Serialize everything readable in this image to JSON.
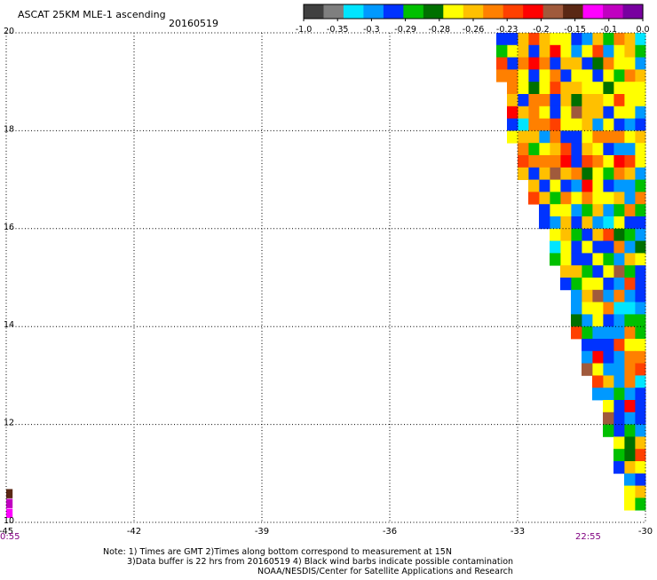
{
  "header": {
    "title": "ASCAT 25KM MLE-1 ascending",
    "date": "20160519"
  },
  "colorbar": {
    "tick_labels": [
      "-1.0",
      "-0.35",
      "-0.3",
      "-0.29",
      "-0.28",
      "-0.26",
      "-0.23",
      "-0.2",
      "-0.15",
      "-0.1",
      "0.0"
    ],
    "colors": [
      "#404040",
      "#7f7f7f",
      "#00e5ff",
      "#0099ff",
      "#0033ff",
      "#00c000",
      "#007000",
      "#ffff00",
      "#ffc000",
      "#ff8000",
      "#ff4000",
      "#ff0000",
      "#a05a3c",
      "#5a2814",
      "#ff00ff",
      "#c000c0",
      "#7800a0"
    ]
  },
  "footer": {
    "note_line1": "Note: 1) Times are GMT 2)Times along bottom correspond to measurement at 15N",
    "note_line2": "3)Data buffer is 22 hrs from 20160519 4) Black wind barbs indicate possible contamination",
    "credit": "NOAA/NESDIS/Center for Satellite Applications and Research"
  },
  "time_labels": {
    "left": "0:55",
    "right": "22:55",
    "color": "#800080"
  },
  "chart_data": {
    "type": "heatmap",
    "title": "ASCAT 25KM MLE-1 ascending",
    "xlabel": "",
    "ylabel": "",
    "xlim": [
      -45,
      -30
    ],
    "ylim": [
      10,
      20
    ],
    "x_ticks": [
      -45,
      -42,
      -39,
      -36,
      -33,
      -30
    ],
    "x_tick_labels": [
      "-45",
      "-42",
      "-39",
      "-36",
      "-33",
      "-30"
    ],
    "y_ticks": [
      10,
      12,
      14,
      16,
      18,
      20
    ],
    "y_tick_labels": [
      "10",
      "12",
      "14",
      "16",
      "18",
      "20"
    ],
    "grid": true,
    "grid_style": "dotted",
    "cell_size_deg": 0.25,
    "swath": [
      {
        "lat": 19.5,
        "west_lon": -33.6
      },
      {
        "lat": 18.5,
        "west_lon": -33.4
      },
      {
        "lat": 17.5,
        "west_lon": -33.2
      },
      {
        "lat": 16.5,
        "west_lon": -32.7
      },
      {
        "lat": 15.5,
        "west_lon": -32.3
      },
      {
        "lat": 14.5,
        "west_lon": -31.9
      },
      {
        "lat": 13.5,
        "west_lon": -31.7
      },
      {
        "lat": 12.5,
        "west_lon": -31.2
      },
      {
        "lat": 11.5,
        "west_lon": -30.9
      },
      {
        "lat": 10.4,
        "west_lon": -30.5
      }
    ],
    "west_edge_samples": [
      {
        "lat": 10.1,
        "lon": -45.0,
        "color": "#ff00ff"
      },
      {
        "lat": 10.3,
        "lon": -45.0,
        "color": "#c000c0"
      },
      {
        "lat": 10.5,
        "lon": -45.0,
        "color": "#5a2814"
      }
    ]
  }
}
